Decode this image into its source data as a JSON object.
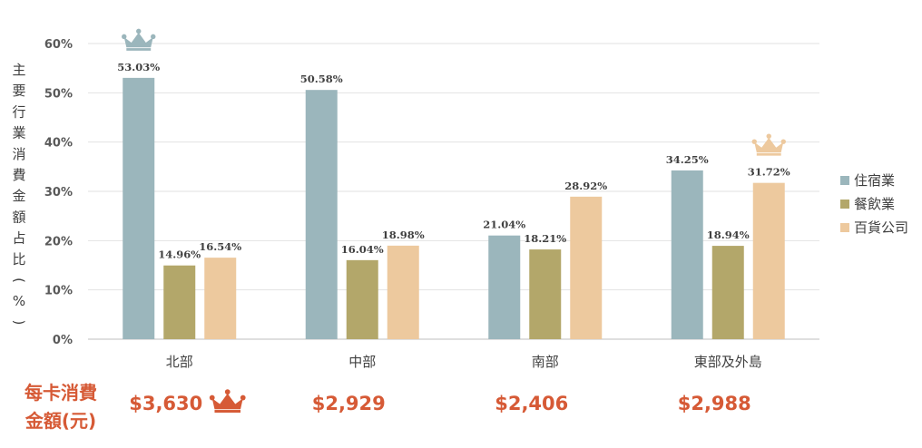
{
  "chart_data": {
    "type": "bar",
    "ylabel": "主要行業消費金額占比(%)",
    "categories": [
      "北部",
      "中部",
      "南部",
      "東部及外島"
    ],
    "yticks": [
      "0%",
      "10%",
      "20%",
      "30%",
      "40%",
      "50%",
      "60%"
    ],
    "ylim": [
      0,
      60
    ],
    "grid": true,
    "legend_position": "right",
    "series": [
      {
        "name": "住宿業",
        "color": "#9bb6bc",
        "values": [
          53.03,
          50.58,
          21.04,
          34.25
        ],
        "labels": [
          "53.03%",
          "50.58%",
          "21.04%",
          "34.25%"
        ]
      },
      {
        "name": "餐飲業",
        "color": "#b3a76a",
        "values": [
          14.96,
          16.04,
          18.21,
          18.94
        ],
        "labels": [
          "14.96%",
          "16.04%",
          "18.21%",
          "18.94%"
        ]
      },
      {
        "name": "百貨公司",
        "color": "#edc99e",
        "values": [
          16.54,
          18.98,
          28.92,
          31.72
        ],
        "labels": [
          "16.54%",
          "18.98%",
          "28.92%",
          "31.72%"
        ]
      }
    ],
    "crowns": [
      {
        "series": 0,
        "category": 0,
        "color": "#9bb6bc"
      },
      {
        "series": 2,
        "category": 3,
        "color": "#edc99e"
      }
    ]
  },
  "per_card": {
    "label_line1": "每卡消費",
    "label_line2": "金額(元)",
    "values": [
      "$3,630",
      "$2,929",
      "$2,406",
      "$2,988"
    ],
    "highlight_index": 0,
    "color": "#d65a36"
  }
}
